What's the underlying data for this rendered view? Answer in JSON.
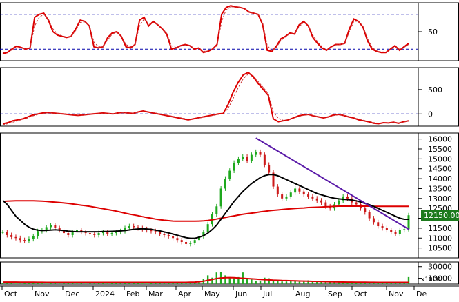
{
  "chart_data": {
    "type": "line",
    "x_labels": [
      "Oct",
      "Nov",
      "Dec",
      "2024",
      "Feb",
      "Mar",
      "Apr",
      "May",
      "Jun",
      "Jul",
      "Aug",
      "Sep",
      "Oct",
      "Nov",
      "De"
    ],
    "panels": [
      {
        "name": "oscillator-1",
        "ylim": [
          0,
          100
        ],
        "tick_labels": [
          {
            "value": 50,
            "text": "50"
          }
        ],
        "reference_levels": [
          80,
          20
        ],
        "series": [
          {
            "role": "main",
            "color": "#dd0000",
            "values": [
              12,
              14,
              20,
              25,
              23,
              20,
              22,
              75,
              80,
              82,
              70,
              50,
              44,
              42,
              40,
              42,
              55,
              70,
              68,
              60,
              24,
              22,
              24,
              40,
              48,
              50,
              42,
              24,
              22,
              28,
              70,
              75,
              60,
              68,
              62,
              55,
              45,
              20,
              22,
              26,
              28,
              26,
              20,
              22,
              14,
              16,
              20,
              28,
              80,
              92,
              95,
              93,
              92,
              90,
              84,
              82,
              80,
              62,
              18,
              16,
              25,
              38,
              42,
              48,
              46,
              62,
              68,
              60,
              40,
              30,
              22,
              18,
              24,
              28,
              28,
              30,
              55,
              72,
              68,
              58,
              34,
              20,
              16,
              14,
              14,
              20,
              26,
              18,
              24,
              30
            ]
          },
          {
            "role": "signal",
            "color": "#cc3333",
            "values": [
              14,
              15,
              18,
              22,
              22,
              21,
              22,
              60,
              75,
              80,
              72,
              55,
              46,
              43,
              41,
              42,
              52,
              66,
              67,
              61,
              32,
              24,
              24,
              36,
              46,
              49,
              43,
              28,
              24,
              28,
              60,
              72,
              63,
              66,
              62,
              56,
              47,
              26,
              23,
              25,
              27,
              26,
              22,
              22,
              16,
              17,
              20,
              26,
              68,
              88,
              93,
              93,
              92,
              90,
              85,
              82,
              80,
              66,
              26,
              18,
              23,
              35,
              41,
              47,
              46,
              59,
              66,
              61,
              44,
              33,
              24,
              19,
              23,
              27,
              28,
              30,
              50,
              68,
              68,
              60,
              38,
              23,
              17,
              15,
              15,
              19,
              24,
              20,
              23,
              28
            ]
          }
        ]
      },
      {
        "name": "oscillator-2",
        "ylim": [
          -250,
          950
        ],
        "tick_labels": [
          {
            "value": 500,
            "text": "500"
          },
          {
            "value": 0,
            "text": "0"
          }
        ],
        "reference_levels": [
          0
        ],
        "series": [
          {
            "role": "main",
            "color": "#dd0000",
            "values": [
              -200,
              -180,
              -140,
              -120,
              -100,
              -60,
              -20,
              0,
              20,
              30,
              20,
              10,
              0,
              -10,
              -20,
              -30,
              -20,
              -10,
              0,
              10,
              20,
              10,
              0,
              20,
              30,
              20,
              10,
              40,
              60,
              40,
              20,
              0,
              -20,
              -40,
              -60,
              -80,
              -100,
              -120,
              -100,
              -80,
              -60,
              -40,
              -20,
              0,
              10,
              200,
              450,
              650,
              800,
              850,
              760,
              620,
              500,
              380,
              -100,
              -160,
              -140,
              -120,
              -80,
              -40,
              -20,
              -10,
              -40,
              -60,
              -80,
              -60,
              -20,
              -10,
              -30,
              -60,
              -80,
              -120,
              -140,
              -160,
              -190,
              -200,
              -180,
              -185,
              -170,
              -190,
              -160,
              -140
            ]
          },
          {
            "role": "signal",
            "color": "#cc3333",
            "values": [
              -220,
              -200,
              -170,
              -140,
              -110,
              -80,
              -40,
              -10,
              10,
              20,
              20,
              12,
              4,
              -6,
              -16,
              -24,
              -22,
              -14,
              -4,
              6,
              14,
              12,
              4,
              14,
              24,
              20,
              14,
              32,
              50,
              42,
              28,
              10,
              -8,
              -28,
              -48,
              -68,
              -88,
              -108,
              -104,
              -88,
              -70,
              -50,
              -30,
              -10,
              4,
              120,
              320,
              540,
              720,
              820,
              780,
              660,
              540,
              420,
              40,
              -90,
              -130,
              -120,
              -90,
              -52,
              -28,
              -16,
              -34,
              -52,
              -70,
              -62,
              -34,
              -18,
              -26,
              -50,
              -70,
              -104,
              -128,
              -148,
              -176,
              -190,
              -182,
              -184,
              -174,
              -184,
              -166,
              -150
            ]
          }
        ]
      },
      {
        "name": "price",
        "ylim": [
          10000,
          16300
        ],
        "tick_labels": [
          {
            "value": 16000,
            "text": "16000"
          },
          {
            "value": 15500,
            "text": "15500"
          },
          {
            "value": 15000,
            "text": "15000"
          },
          {
            "value": 14500,
            "text": "14500"
          },
          {
            "value": 14000,
            "text": "14000"
          },
          {
            "value": 13500,
            "text": "13500"
          },
          {
            "value": 13000,
            "text": "13000"
          },
          {
            "value": 12500,
            "text": "12500"
          },
          {
            "value": 12000,
            "text": "12000"
          },
          {
            "value": 11500,
            "text": "11500"
          },
          {
            "value": 11000,
            "text": "11000"
          },
          {
            "value": 10500,
            "text": "10500"
          }
        ],
        "last_price_label": "12150.00",
        "last_price": 12150,
        "close": [
          11300,
          11150,
          11050,
          11000,
          10900,
          10850,
          10950,
          11100,
          11350,
          11400,
          11550,
          11650,
          11500,
          11400,
          11250,
          11150,
          11300,
          11400,
          11300,
          11250,
          11200,
          11150,
          11250,
          11300,
          11200,
          11250,
          11300,
          11350,
          11500,
          11600,
          11550,
          11500,
          11450,
          11400,
          11350,
          11300,
          11200,
          11150,
          11100,
          11000,
          10900,
          10800,
          10700,
          10750,
          10900,
          11100,
          11300,
          11700,
          12200,
          12600,
          13500,
          14000,
          14400,
          14800,
          15000,
          15100,
          14900,
          15200,
          15350,
          15200,
          14700,
          14300,
          13600,
          13200,
          13000,
          13100,
          13300,
          13500,
          13350,
          13200,
          13100,
          13000,
          12900,
          12800,
          12600,
          12500,
          12700,
          12900,
          13100,
          13000,
          12800,
          12700,
          12500,
          12300,
          12000,
          11800,
          11600,
          11500,
          11400,
          11300,
          11200,
          11400,
          11450,
          12150
        ],
        "ma_long": [
          12850,
          12860,
          12870,
          12880,
          12880,
          12880,
          12880,
          12880,
          12870,
          12860,
          12850,
          12830,
          12810,
          12790,
          12770,
          12750,
          12720,
          12690,
          12660,
          12630,
          12600,
          12560,
          12520,
          12480,
          12440,
          12400,
          12360,
          12310,
          12260,
          12210,
          12170,
          12130,
          12080,
          12040,
          12000,
          11960,
          11930,
          11900,
          11880,
          11860,
          11850,
          11850,
          11850,
          11850,
          11850,
          11860,
          11870,
          11890,
          11920,
          11960,
          12000,
          12040,
          12080,
          12120,
          12160,
          12200,
          12230,
          12260,
          12290,
          12320,
          12350,
          12380,
          12400,
          12420,
          12440,
          12460,
          12480,
          12500,
          12510,
          12520,
          12540,
          12550,
          12560,
          12570,
          12580,
          12590,
          12600,
          12610,
          12610,
          12610,
          12610,
          12610,
          12610,
          12610,
          12610,
          12600,
          12600,
          12600,
          12600,
          12600,
          12600,
          12600,
          12600,
          12600
        ],
        "ma_mid": [
          12900,
          12700,
          12400,
          12100,
          11900,
          11700,
          11550,
          11450,
          11400,
          11380,
          11390,
          11400,
          11420,
          11400,
          11380,
          11350,
          11330,
          11320,
          11320,
          11320,
          11320,
          11320,
          11320,
          11330,
          11330,
          11340,
          11350,
          11360,
          11380,
          11410,
          11440,
          11460,
          11470,
          11460,
          11440,
          11400,
          11360,
          11310,
          11260,
          11200,
          11140,
          11080,
          11020,
          10990,
          10990,
          11040,
          11120,
          11250,
          11430,
          11650,
          11950,
          12250,
          12550,
          12850,
          13100,
          13350,
          13550,
          13750,
          13900,
          14050,
          14150,
          14200,
          14200,
          14150,
          14050,
          13950,
          13850,
          13750,
          13650,
          13550,
          13450,
          13350,
          13250,
          13180,
          13120,
          13060,
          13010,
          12980,
          12960,
          12940,
          12920,
          12880,
          12820,
          12750,
          12680,
          12600,
          12500,
          12400,
          12300,
          12200,
          12100,
          12000,
          11950,
          11950
        ],
        "trendline": {
          "start": {
            "x_index": 58,
            "y": 16050
          },
          "end": {
            "x_index": 93,
            "y": 11450
          }
        }
      },
      {
        "name": "volume",
        "ylim": [
          0,
          38000
        ],
        "tick_labels": [
          {
            "value": 30000,
            "text": "30000"
          },
          {
            "value": 10000,
            "text": "10000"
          }
        ],
        "unit_label": "x1000",
        "volume": [
          1500,
          1200,
          1800,
          900,
          1000,
          2500,
          1600,
          3000,
          1200,
          1100,
          900,
          1500,
          1300,
          1000,
          2200,
          1700,
          1300,
          1000,
          1400,
          900,
          1200,
          1100,
          1700,
          1800,
          1000,
          1600,
          2000,
          1600,
          1200,
          1500,
          2500,
          1300,
          1000,
          900,
          2100,
          1500,
          1700,
          1100,
          1600,
          2900,
          2100,
          1300,
          1100,
          1700,
          2400,
          4500,
          9000,
          15000,
          11000,
          20000,
          21000,
          15000,
          12000,
          10000,
          12000,
          20000,
          9000,
          8000,
          6000,
          5000,
          11000,
          10000,
          6000,
          5000,
          4500,
          4500,
          6000,
          5000,
          4000,
          4000,
          6500,
          4000,
          3500,
          4500,
          3000,
          4000,
          3000,
          3500,
          4000,
          3000,
          2500,
          3500,
          2500,
          2200,
          2500,
          2800,
          3000,
          1800,
          2200,
          2500,
          2500,
          3000,
          2500,
          12000
        ],
        "volume_ma": [
          3500,
          3500,
          3400,
          3400,
          3300,
          3300,
          3200,
          3200,
          3100,
          3100,
          3000,
          3000,
          3000,
          3000,
          3000,
          3000,
          3000,
          3000,
          3000,
          3000,
          3000,
          3000,
          3000,
          3000,
          3000,
          3000,
          3000,
          3000,
          3000,
          3000,
          3000,
          3000,
          3000,
          3000,
          3000,
          3000,
          3000,
          3000,
          3000,
          3000,
          3000,
          3000,
          3000,
          3200,
          3500,
          4000,
          5000,
          6500,
          8000,
          9500,
          10500,
          11000,
          11200,
          11000,
          10500,
          10000,
          9500,
          9000,
          8500,
          8000,
          7600,
          7200,
          6800,
          6500,
          6200,
          6000,
          5800,
          5600,
          5400,
          5200,
          5000,
          4800,
          4600,
          4400,
          4200,
          4000,
          3800,
          3700,
          3600,
          3500,
          3400,
          3300,
          3200,
          3150,
          3100,
          3050,
          3000,
          3000,
          3000,
          3000,
          3000,
          3000,
          3000,
          3000
        ]
      }
    ],
    "colors": {
      "main_line": "#dd0000",
      "ma_mid": "#000000",
      "trendline": "#5a1aa8",
      "candle_up": "#1ea81e",
      "candle_down": "#cc1a1a",
      "volume_bar": "#22aa22",
      "reference_line": "#0000aa",
      "last_price_box": "#1c7a1c"
    }
  }
}
